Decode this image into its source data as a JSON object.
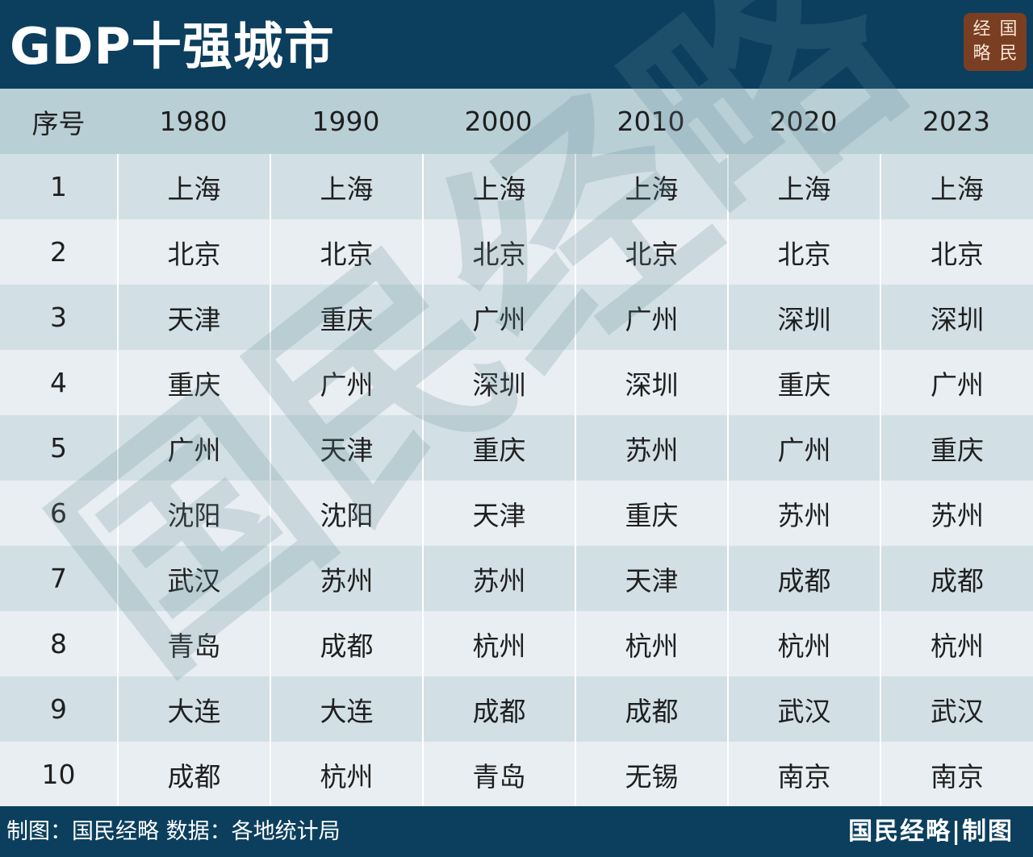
{
  "header": {
    "title": "GDP十强城市",
    "logo_chars": [
      "经",
      "国",
      "略",
      "民"
    ]
  },
  "chart_data": {
    "type": "table",
    "columns": [
      "序号",
      "1980",
      "1990",
      "2000",
      "2010",
      "2020",
      "2023"
    ],
    "rows": [
      [
        "1",
        "上海",
        "上海",
        "上海",
        "上海",
        "上海",
        "上海"
      ],
      [
        "2",
        "北京",
        "北京",
        "北京",
        "北京",
        "北京",
        "北京"
      ],
      [
        "3",
        "天津",
        "重庆",
        "广州",
        "广州",
        "深圳",
        "深圳"
      ],
      [
        "4",
        "重庆",
        "广州",
        "深圳",
        "深圳",
        "重庆",
        "广州"
      ],
      [
        "5",
        "广州",
        "天津",
        "重庆",
        "苏州",
        "广州",
        "重庆"
      ],
      [
        "6",
        "沈阳",
        "沈阳",
        "天津",
        "重庆",
        "苏州",
        "苏州"
      ],
      [
        "7",
        "武汉",
        "苏州",
        "苏州",
        "天津",
        "成都",
        "成都"
      ],
      [
        "8",
        "青岛",
        "成都",
        "杭州",
        "杭州",
        "杭州",
        "杭州"
      ],
      [
        "9",
        "大连",
        "大连",
        "成都",
        "成都",
        "武汉",
        "武汉"
      ],
      [
        "10",
        "成都",
        "杭州",
        "青岛",
        "无锡",
        "南京",
        "南京"
      ]
    ]
  },
  "watermark": {
    "text": "国民经略"
  },
  "footer": {
    "credit": "制图：国民经略  数据：各地统计局",
    "brand": "国民经略|制图"
  },
  "colors": {
    "header_bg": "#0c3f5e",
    "header_row_bg": "#b9cfd6",
    "row_odd_bg": "#d2e0e5",
    "row_even_bg": "#e8eef1",
    "seal_bg": "#7a3e22"
  }
}
